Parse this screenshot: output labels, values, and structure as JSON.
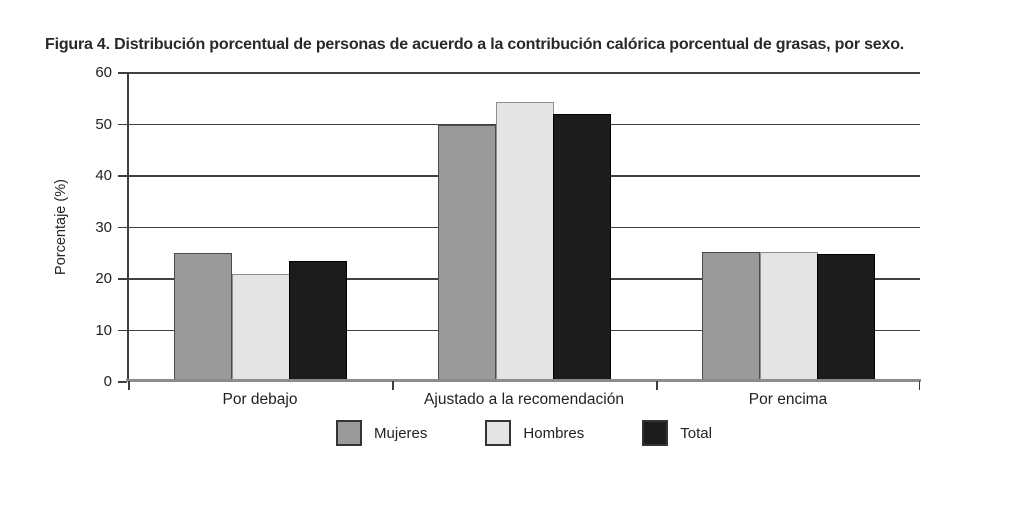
{
  "figure": {
    "title": "Figura 4. Distribución porcentual de personas de acuerdo a la contribución calórica porcentual de grasas, por sexo."
  },
  "chart_data": {
    "type": "bar",
    "title": "Figura 4. Distribución porcentual de personas de acuerdo a la contribución calórica porcentual de grasas, por sexo.",
    "categories": [
      "Por debajo",
      "Ajustado a la recomendación",
      "Por encima"
    ],
    "series": [
      {
        "name": "Mujeres",
        "fill": "#9a9a9a",
        "border": "#4a4a4a",
        "values": [
          25,
          50,
          25.2
        ]
      },
      {
        "name": "Hombres",
        "fill": "#e4e4e4",
        "border": "#8e8e8e",
        "values": [
          21,
          54.3,
          25.2
        ]
      },
      {
        "name": "Total",
        "fill": "#1c1c1c",
        "border": "#000000",
        "values": [
          23.5,
          52,
          24.8
        ]
      }
    ],
    "xlabel": "",
    "ylabel": "Porcentaje (%)",
    "ylim": [
      0,
      60
    ],
    "yticks": [
      0,
      10,
      20,
      30,
      40,
      50,
      60
    ],
    "grid": true,
    "legend_position": "bottom",
    "styles": {
      "grid_color": "#414141",
      "axis_color": "#3d3d3d",
      "baseline_color": "#8c8c8c",
      "legend_border": "#343434",
      "background": "#ffffff",
      "text_color": "#242121"
    }
  }
}
